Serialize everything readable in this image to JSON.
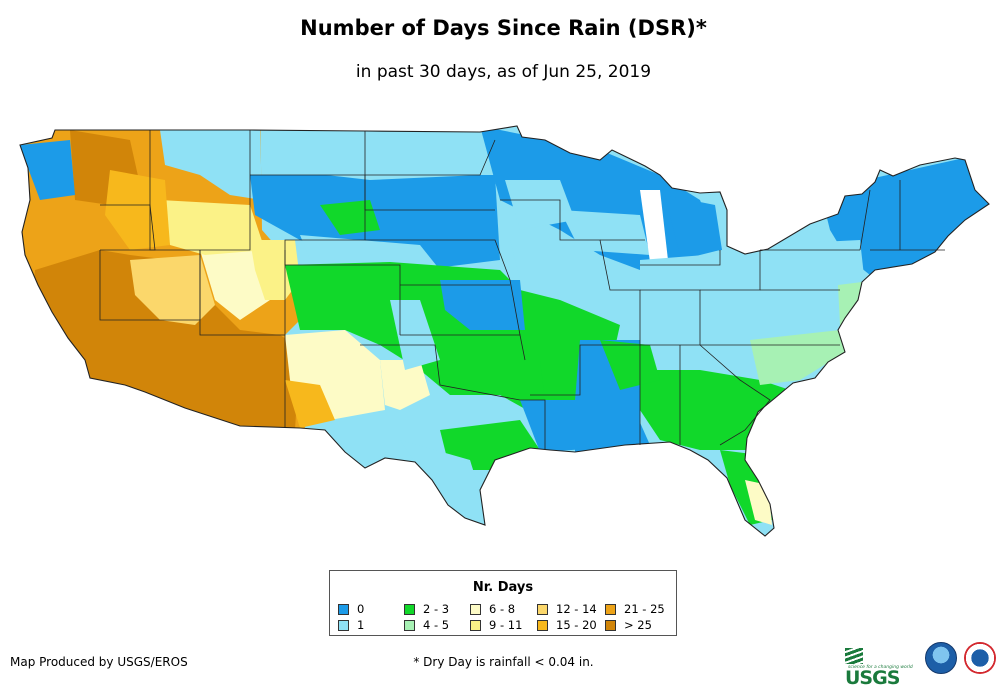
{
  "title": "Number of Days Since Rain (DSR)*",
  "subtitle": "in past 30 days, as of Jun 25, 2019",
  "legend": {
    "title": "Nr. Days",
    "items": [
      {
        "label": "0",
        "color": "#1c9be8"
      },
      {
        "label": "1",
        "color": "#8fe1f5"
      },
      {
        "label": "2 - 3",
        "color": "#11d82a"
      },
      {
        "label": "4 - 5",
        "color": "#a7f1b4"
      },
      {
        "label": "6 - 8",
        "color": "#fdfbc6"
      },
      {
        "label": "9 - 11",
        "color": "#fbf287"
      },
      {
        "label": "12 - 14",
        "color": "#fbd76b"
      },
      {
        "label": "15 - 20",
        "color": "#f7b81c"
      },
      {
        "label": "21 - 25",
        "color": "#eda318"
      },
      {
        "label": "> 25",
        "color": "#d18509"
      }
    ]
  },
  "credit": "Map Produced by USGS/EROS",
  "footnote": "* Dry Day is rainfall < 0.04 in.",
  "logos": {
    "usgs": "USGS",
    "usgs_tagline": "science for a changing world",
    "noaa": "noaa-logo",
    "nws": "nws-logo"
  }
}
